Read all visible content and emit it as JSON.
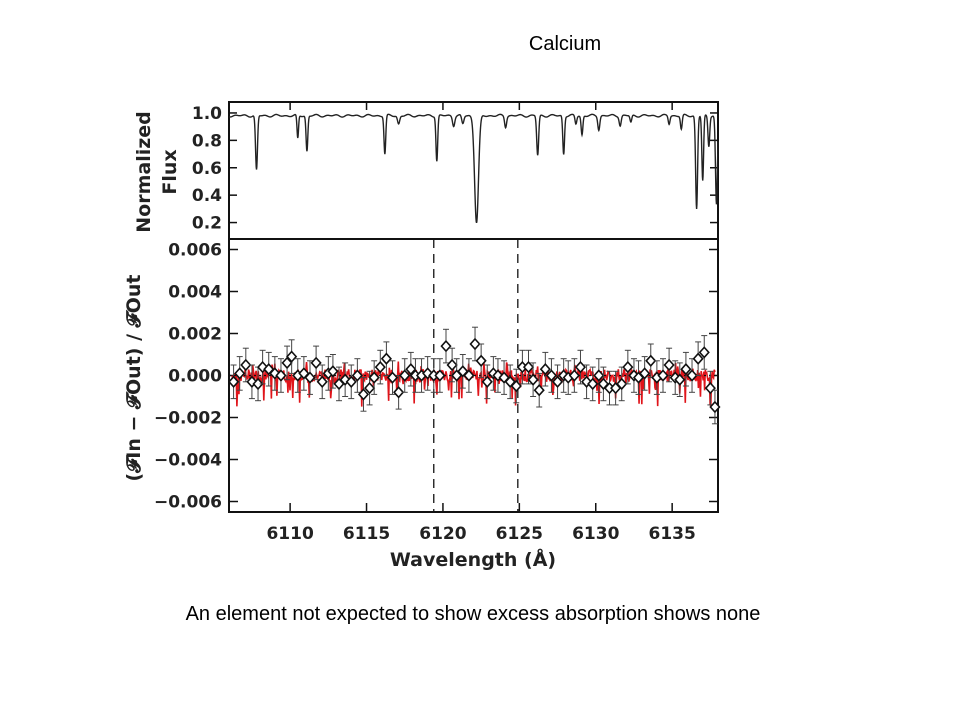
{
  "slide": {
    "title": "Calcium",
    "caption": "An element not expected to show excess absorption shows none"
  },
  "colors": {
    "spectrum": "#222222",
    "model": "#e0141a",
    "points": "#111111",
    "axis": "#111111"
  },
  "chart_data": [
    {
      "type": "line",
      "panel": "top",
      "ylabel_lines": [
        "Normalized",
        "Flux"
      ],
      "xlim": [
        6106,
        6138
      ],
      "ylim": [
        0.08,
        1.08
      ],
      "yticks": [
        "1.0",
        "0.8",
        "0.6",
        "0.4",
        "0.2"
      ],
      "ytick_values": [
        1.0,
        0.8,
        0.6,
        0.4,
        0.2
      ],
      "continuum": 0.98,
      "absorption_lines": [
        {
          "center": 6107.8,
          "depth": 0.4,
          "width": 0.09
        },
        {
          "center": 6110.5,
          "depth": 0.17,
          "width": 0.07
        },
        {
          "center": 6111.1,
          "depth": 0.26,
          "width": 0.08
        },
        {
          "center": 6116.2,
          "depth": 0.28,
          "width": 0.08
        },
        {
          "center": 6117.1,
          "depth": 0.06,
          "width": 0.1
        },
        {
          "center": 6119.6,
          "depth": 0.33,
          "width": 0.08
        },
        {
          "center": 6120.7,
          "depth": 0.07,
          "width": 0.1
        },
        {
          "center": 6121.3,
          "depth": 0.06,
          "width": 0.1
        },
        {
          "center": 6122.2,
          "depth": 0.78,
          "width": 0.18
        },
        {
          "center": 6124.1,
          "depth": 0.08,
          "width": 0.09
        },
        {
          "center": 6126.2,
          "depth": 0.29,
          "width": 0.09
        },
        {
          "center": 6127.9,
          "depth": 0.28,
          "width": 0.08
        },
        {
          "center": 6128.7,
          "depth": 0.06,
          "width": 0.08
        },
        {
          "center": 6129.1,
          "depth": 0.14,
          "width": 0.08
        },
        {
          "center": 6130.2,
          "depth": 0.1,
          "width": 0.09
        },
        {
          "center": 6131.6,
          "depth": 0.07,
          "width": 0.09
        },
        {
          "center": 6132.3,
          "depth": 0.05,
          "width": 0.08
        },
        {
          "center": 6134.8,
          "depth": 0.06,
          "width": 0.08
        },
        {
          "center": 6135.6,
          "depth": 0.1,
          "width": 0.08
        },
        {
          "center": 6136.6,
          "depth": 0.68,
          "width": 0.09
        },
        {
          "center": 6137.0,
          "depth": 0.48,
          "width": 0.08
        },
        {
          "center": 6137.4,
          "depth": 0.22,
          "width": 0.08
        },
        {
          "center": 6137.9,
          "depth": 0.65,
          "width": 0.09
        }
      ]
    },
    {
      "type": "scatter",
      "panel": "bottom",
      "xlabel": "Wavelength (Å)",
      "ylabel": "(𝓕In − 𝓕Out) / 𝓕Out",
      "xlim": [
        6106,
        6138
      ],
      "ylim": [
        -0.0065,
        0.0065
      ],
      "xticks": [
        "6110",
        "6115",
        "6120",
        "6125",
        "6130",
        "6135"
      ],
      "xtick_values": [
        6110,
        6115,
        6120,
        6125,
        6130,
        6135
      ],
      "yticks": [
        "0.006",
        "0.004",
        "0.002",
        "0.000",
        "−0.002",
        "−0.004",
        "−0.006"
      ],
      "ytick_values": [
        0.006,
        0.004,
        0.002,
        0.0,
        -0.002,
        -0.004,
        -0.006
      ],
      "dashed_lines_x": [
        6119.4,
        6124.9
      ],
      "error_bar": 0.0008,
      "points": [
        {
          "x": 6106.3,
          "y": -0.0003
        },
        {
          "x": 6106.7,
          "y": 0.0001
        },
        {
          "x": 6107.1,
          "y": 0.0005
        },
        {
          "x": 6107.5,
          "y": -0.0003
        },
        {
          "x": 6107.9,
          "y": -0.0004
        },
        {
          "x": 6108.2,
          "y": 0.0004
        },
        {
          "x": 6108.6,
          "y": 0.0003
        },
        {
          "x": 6109.0,
          "y": 0.0001
        },
        {
          "x": 6109.4,
          "y": 0.0
        },
        {
          "x": 6109.8,
          "y": 0.0006
        },
        {
          "x": 6110.1,
          "y": 0.0009
        },
        {
          "x": 6110.5,
          "y": 0.0
        },
        {
          "x": 6110.9,
          "y": 0.0001
        },
        {
          "x": 6111.3,
          "y": -0.0001
        },
        {
          "x": 6111.7,
          "y": 0.0006
        },
        {
          "x": 6112.1,
          "y": -0.0003
        },
        {
          "x": 6112.5,
          "y": 0.0001
        },
        {
          "x": 6112.8,
          "y": 0.0002
        },
        {
          "x": 6113.2,
          "y": -0.0004
        },
        {
          "x": 6113.6,
          "y": -0.0002
        },
        {
          "x": 6114.0,
          "y": -0.0003
        },
        {
          "x": 6114.4,
          "y": 0.0
        },
        {
          "x": 6114.8,
          "y": -0.0009
        },
        {
          "x": 6115.2,
          "y": -0.0006
        },
        {
          "x": 6115.5,
          "y": -0.0001
        },
        {
          "x": 6115.9,
          "y": 0.0004
        },
        {
          "x": 6116.3,
          "y": 0.0008
        },
        {
          "x": 6116.7,
          "y": -0.0001
        },
        {
          "x": 6117.1,
          "y": -0.0008
        },
        {
          "x": 6117.5,
          "y": 0.0
        },
        {
          "x": 6117.9,
          "y": 0.0003
        },
        {
          "x": 6118.2,
          "y": 0.0
        },
        {
          "x": 6118.6,
          "y": 0.0
        },
        {
          "x": 6119.0,
          "y": 0.0001
        },
        {
          "x": 6119.4,
          "y": 0.0
        },
        {
          "x": 6119.8,
          "y": 0.0
        },
        {
          "x": 6120.2,
          "y": 0.0014
        },
        {
          "x": 6120.6,
          "y": 0.0005
        },
        {
          "x": 6120.9,
          "y": 0.0
        },
        {
          "x": 6121.3,
          "y": 0.0002
        },
        {
          "x": 6121.7,
          "y": 0.0
        },
        {
          "x": 6122.1,
          "y": 0.0015
        },
        {
          "x": 6122.5,
          "y": 0.0007
        },
        {
          "x": 6122.9,
          "y": -0.0003
        },
        {
          "x": 6123.3,
          "y": 0.0001
        },
        {
          "x": 6123.6,
          "y": 0.0
        },
        {
          "x": 6124.0,
          "y": -0.0001
        },
        {
          "x": 6124.4,
          "y": -0.0003
        },
        {
          "x": 6124.8,
          "y": -0.0005
        },
        {
          "x": 6125.2,
          "y": 0.0004
        },
        {
          "x": 6125.6,
          "y": 0.0004
        },
        {
          "x": 6125.9,
          "y": -0.0002
        },
        {
          "x": 6126.3,
          "y": -0.0007
        },
        {
          "x": 6126.7,
          "y": 0.0003
        },
        {
          "x": 6127.1,
          "y": 0.0
        },
        {
          "x": 6127.5,
          "y": -0.0003
        },
        {
          "x": 6127.9,
          "y": 0.0
        },
        {
          "x": 6128.2,
          "y": -0.0001
        },
        {
          "x": 6128.6,
          "y": 0.0
        },
        {
          "x": 6129.0,
          "y": 0.0004
        },
        {
          "x": 6129.4,
          "y": -0.0003
        },
        {
          "x": 6129.8,
          "y": -0.0004
        },
        {
          "x": 6130.2,
          "y": 0.0
        },
        {
          "x": 6130.5,
          "y": -0.0004
        },
        {
          "x": 6130.9,
          "y": -0.0006
        },
        {
          "x": 6131.3,
          "y": -0.0006
        },
        {
          "x": 6131.7,
          "y": -0.0004
        },
        {
          "x": 6132.1,
          "y": 0.0004
        },
        {
          "x": 6132.5,
          "y": 0.0
        },
        {
          "x": 6132.8,
          "y": -0.0001
        },
        {
          "x": 6133.2,
          "y": 0.0001
        },
        {
          "x": 6133.6,
          "y": 0.0007
        },
        {
          "x": 6134.0,
          "y": -0.0001
        },
        {
          "x": 6134.4,
          "y": 0.0
        },
        {
          "x": 6134.8,
          "y": 0.0005
        },
        {
          "x": 6135.2,
          "y": -0.0001
        },
        {
          "x": 6135.5,
          "y": -0.0002
        },
        {
          "x": 6135.9,
          "y": 0.0003
        },
        {
          "x": 6136.3,
          "y": 0.0
        },
        {
          "x": 6136.7,
          "y": 0.0008
        },
        {
          "x": 6137.1,
          "y": 0.0011
        },
        {
          "x": 6137.5,
          "y": -0.0006
        },
        {
          "x": 6137.8,
          "y": -0.0015
        }
      ]
    }
  ]
}
